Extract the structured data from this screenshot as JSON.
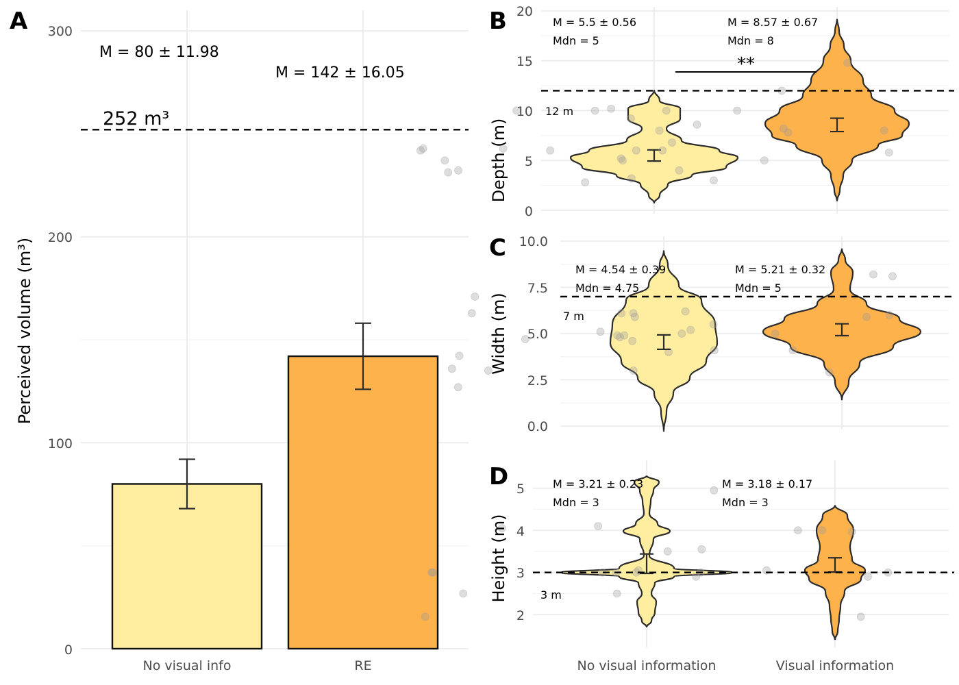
{
  "colors": {
    "no_visual": "#FFEDA0",
    "visual": "#FEB24C",
    "outline": "#2b2b2b",
    "dots": "#9a9a9a"
  },
  "chart_data": [
    {
      "panel": "A",
      "type": "bar",
      "categories": [
        "No visual info",
        "RE"
      ],
      "values": [
        80,
        142
      ],
      "errors": [
        11.98,
        16.05
      ],
      "ylabel": "Perceived volume (m³)",
      "ylim": [
        0,
        300
      ],
      "yticks": [
        "0",
        "100",
        "200",
        "300"
      ],
      "reference": {
        "value": 252,
        "label": "252 m³"
      },
      "annotations": [
        "M = 80 ± 11.98",
        "M = 142 ± 16.05"
      ],
      "grid": true
    },
    {
      "panel": "B",
      "type": "violin",
      "categories": [
        "No visual information",
        "Visual information"
      ],
      "ylabel": "Depth (m)",
      "ylim": [
        0,
        20
      ],
      "yticks": [
        "0",
        "5",
        "10",
        "15",
        "20"
      ],
      "reference": {
        "value": 12,
        "label": "12 m"
      },
      "significance": "**",
      "series": [
        {
          "mean": 5.5,
          "se": 0.56,
          "median": 5,
          "label_mean": "M = 5.5 ± 0.56",
          "label_median": "Mdn = 5",
          "points": [
            10,
            6,
            4,
            6,
            4,
            3,
            3.2,
            2.8,
            10.2,
            8,
            5,
            5.2,
            5,
            3.8,
            6.2,
            6.2
          ]
        },
        {
          "mean": 8.57,
          "se": 0.67,
          "median": 8,
          "label_mean": "M = 8.57 ± 0.67",
          "label_median": "Mdn = 8",
          "points": [
            6,
            10,
            9.2,
            8,
            7.8,
            12,
            14.8,
            5.8,
            5,
            8.2,
            10,
            10,
            8.6,
            6.8,
            6
          ]
        }
      ]
    },
    {
      "panel": "C",
      "type": "violin",
      "categories": [
        "No visual information",
        "Visual information"
      ],
      "ylabel": "Width (m)",
      "ylim": [
        0,
        10
      ],
      "yticks": [
        "0.0",
        "2.5",
        "5.0",
        "7.5",
        "10.0"
      ],
      "reference": {
        "value": 7,
        "label": "7 m"
      },
      "series": [
        {
          "mean": 4.54,
          "se": 0.39,
          "median": 4.75,
          "label_mean": "M = 4.54 ± 0.39",
          "label_median": "Mdn = 4.75",
          "points": [
            5.1,
            4.9,
            4,
            5.9,
            3,
            6.1,
            7,
            4.7,
            3.1,
            2.1,
            3.8,
            3,
            6.1,
            4.9
          ]
        },
        {
          "mean": 5.21,
          "se": 0.32,
          "median": 5,
          "label_mean": "M = 5.21 ± 0.32",
          "label_median": "Mdn = 5",
          "points": [
            6,
            5,
            4.1,
            4.8,
            6.2,
            5.5,
            5.2,
            5,
            6.1,
            4.1,
            4.6,
            5.9,
            2.9,
            8.1,
            8.2
          ]
        }
      ]
    },
    {
      "panel": "D",
      "type": "violin",
      "categories": [
        "No visual information",
        "Visual information"
      ],
      "ylabel": "Height (m)",
      "ylim": [
        1.5,
        5.5
      ],
      "yticks": [
        "2",
        "3",
        "4",
        "5"
      ],
      "reference": {
        "value": 3,
        "label": "3 m"
      },
      "series": [
        {
          "mean": 3.21,
          "se": 0.23,
          "median": 3,
          "label_mean": "M = 3.21 ± 0.23",
          "label_median": "Mdn = 3",
          "points": [
            4.05,
            1.95,
            3,
            3,
            2.5,
            3,
            4.1,
            4.95,
            3.05,
            3,
            3,
            2.9
          ]
        },
        {
          "mean": 3.18,
          "se": 0.17,
          "median": 3,
          "label_mean": "M = 3.18 ± 0.17",
          "label_median": "Mdn = 3",
          "points": [
            3.5,
            2.5,
            3.55,
            3,
            1.95,
            4,
            3,
            2.9,
            4,
            3.97,
            3.05
          ]
        }
      ]
    }
  ]
}
